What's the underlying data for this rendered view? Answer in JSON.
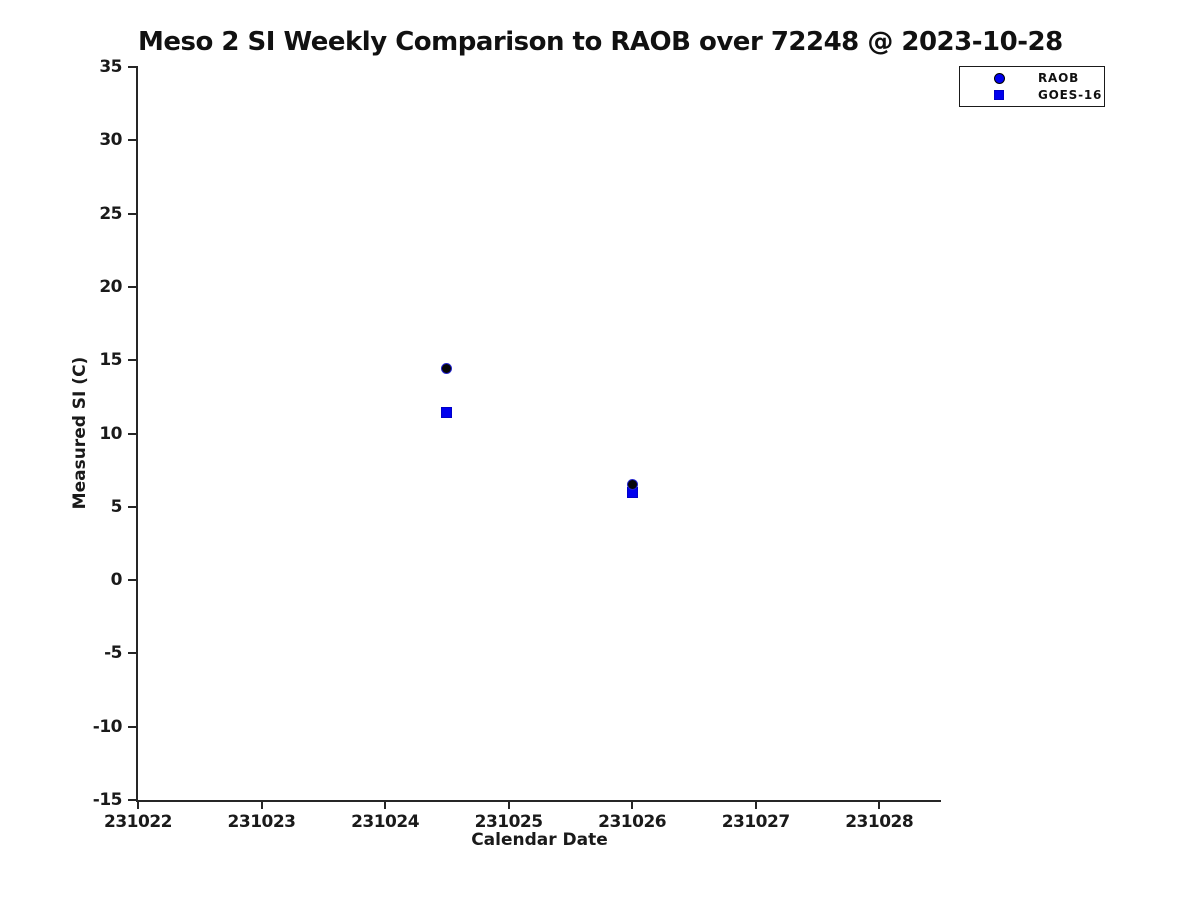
{
  "chart_data": {
    "type": "scatter",
    "title": "Meso 2 SI Weekly Comparison to RAOB over 72248 @ 2023-10-28",
    "xlabel": "Calendar Date",
    "ylabel": "Measured SI (C)",
    "xlim": [
      231022,
      231028.5
    ],
    "ylim": [
      -15,
      35
    ],
    "x_ticks": [
      231022,
      231023,
      231024,
      231025,
      231026,
      231027,
      231028
    ],
    "y_ticks": [
      35,
      30,
      25,
      20,
      15,
      10,
      5,
      0,
      -5,
      -10,
      -15
    ],
    "grid": false,
    "legend_position": "top-right-outside-axes",
    "series": [
      {
        "name": "RAOB",
        "marker": "circle",
        "fill_color": "#050508",
        "edge_color": "#2222cc",
        "legend_fill": "#0000ee",
        "legend_edge": "#000000",
        "points": [
          {
            "x": 231024.5,
            "y": 14.4
          },
          {
            "x": 231026.0,
            "y": 6.5
          }
        ]
      },
      {
        "name": "GOES-16",
        "marker": "square",
        "fill_color": "#0000ee",
        "edge_color": "#0000c8",
        "legend_fill": "#0000ee",
        "legend_edge": "#0000c8",
        "points": [
          {
            "x": 231024.5,
            "y": 11.4
          },
          {
            "x": 231026.0,
            "y": 6.0
          }
        ]
      }
    ],
    "colors": {
      "axis": "#262626",
      "text": "#1a1a1a",
      "background": "#ffffff",
      "marker_blue": "#0000ee"
    }
  }
}
